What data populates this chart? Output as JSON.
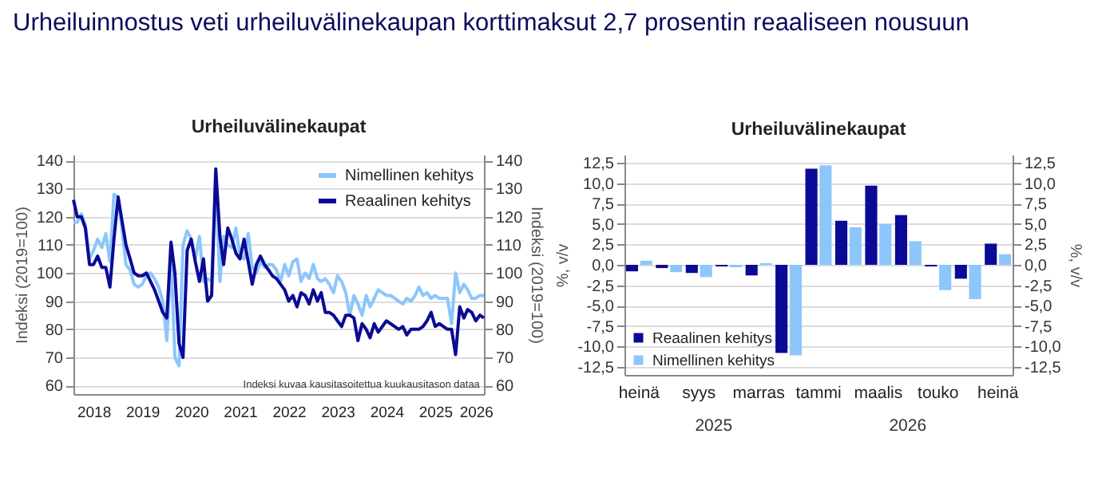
{
  "chart_data": [
    {
      "type": "line",
      "title": "Urheiluinnostus veti urheiluvälinekaupan korttimaksut 2,7 prosentin reaaliseen nousuun",
      "subtitle": "Urheiluvälinekaupat",
      "ylabel": "Indeksi (2019=100)",
      "y2label": "Indeksi (2019=100)",
      "annotations": [
        "Indeksi kuvaa kausitasoitettua kuukausitason dataa"
      ],
      "x": [
        "2018-02",
        "2018-03",
        "2018-04",
        "2018-05",
        "2018-06",
        "2018-07",
        "2018-08",
        "2018-09",
        "2018-10",
        "2018-11",
        "2018-12",
        "2019-01",
        "2019-02",
        "2019-03",
        "2019-04",
        "2019-05",
        "2019-06",
        "2019-07",
        "2019-08",
        "2019-09",
        "2019-10",
        "2019-11",
        "2019-12",
        "2020-01",
        "2020-02",
        "2020-03",
        "2020-04",
        "2020-05",
        "2020-06",
        "2020-07",
        "2020-08",
        "2020-09",
        "2020-10",
        "2020-11",
        "2020-12",
        "2021-01",
        "2021-02",
        "2021-03",
        "2021-04",
        "2021-05",
        "2021-06",
        "2021-07",
        "2021-08",
        "2021-09",
        "2021-10",
        "2021-11",
        "2021-12",
        "2022-01",
        "2022-02",
        "2022-03",
        "2022-04",
        "2022-05",
        "2022-06",
        "2022-07",
        "2022-08",
        "2022-09",
        "2022-10",
        "2022-11",
        "2022-12",
        "2023-01",
        "2023-02",
        "2023-03",
        "2023-04",
        "2023-05",
        "2023-06",
        "2023-07",
        "2023-08",
        "2023-09",
        "2023-10",
        "2023-11",
        "2023-12",
        "2024-01",
        "2024-02",
        "2024-03",
        "2024-04",
        "2024-05",
        "2024-06",
        "2024-07",
        "2024-08",
        "2024-09",
        "2024-10",
        "2024-11",
        "2024-12",
        "2025-01",
        "2025-02",
        "2025-03",
        "2025-04",
        "2025-05",
        "2025-06",
        "2025-07",
        "2025-08",
        "2025-09",
        "2025-10",
        "2025-11",
        "2025-12",
        "2026-01",
        "2026-02",
        "2026-03",
        "2026-04",
        "2026-05",
        "2026-06",
        "2026-07"
      ],
      "series": [
        {
          "name": "Nimellinen kehitys",
          "color": "#8cc6fb",
          "values": [
            118,
            118,
            121,
            117,
            105,
            108,
            112,
            109,
            114,
            104,
            128,
            127,
            115,
            103,
            101,
            96,
            95,
            96,
            99,
            100,
            98,
            95,
            90,
            76,
            107,
            70,
            67,
            110,
            115,
            112,
            105,
            113,
            97,
            98,
            97,
            134,
            97,
            113,
            110,
            109,
            116,
            106,
            105,
            114,
            102,
            100,
            104,
            102,
            103,
            103,
            101,
            97,
            103,
            99,
            104,
            105,
            97,
            100,
            98,
            103,
            98,
            97,
            98,
            96,
            93,
            99,
            97,
            93,
            85,
            92,
            89,
            85,
            92,
            88,
            91,
            94,
            93,
            92,
            92,
            91,
            90,
            89,
            91,
            90,
            92,
            95,
            92,
            93,
            91,
            92,
            91,
            91,
            91,
            82,
            100,
            93,
            96,
            94,
            91,
            91,
            92,
            92
          ]
        },
        {
          "name": "Reaalinen kehitys",
          "color": "#0a0a96",
          "values": [
            126,
            120,
            120,
            116,
            103,
            103,
            106,
            102,
            102,
            95,
            112,
            127,
            118,
            110,
            105,
            100,
            99,
            99,
            100,
            97,
            94,
            90,
            86,
            84,
            111,
            100,
            75,
            70,
            108,
            112,
            104,
            97,
            105,
            90,
            92,
            137,
            113,
            103,
            116,
            112,
            107,
            105,
            112,
            104,
            96,
            103,
            106,
            103,
            101,
            99,
            98,
            96,
            94,
            90,
            92,
            88,
            93,
            92,
            89,
            94,
            90,
            93,
            86,
            86,
            85,
            83,
            81,
            85,
            85,
            84,
            76,
            82,
            80,
            77,
            82,
            79,
            81,
            83,
            82,
            81,
            80,
            81,
            78,
            80,
            80,
            80,
            81,
            83,
            86,
            81,
            82,
            81,
            80,
            80,
            71,
            88,
            84,
            87,
            86,
            83,
            85,
            84
          ]
        }
      ],
      "xlim": [
        "2018-02",
        "2026-07"
      ],
      "xticks": [
        {
          "value": "2018-07",
          "label": "2018"
        },
        {
          "value": "2019-07",
          "label": "2019"
        },
        {
          "value": "2020-07",
          "label": "2020"
        },
        {
          "value": "2021-07",
          "label": "2021"
        },
        {
          "value": "2022-07",
          "label": "2022"
        },
        {
          "value": "2023-07",
          "label": "2023"
        },
        {
          "value": "2024-07",
          "label": "2024"
        },
        {
          "value": "2025-07",
          "label": "2025"
        },
        {
          "value": "2026-05",
          "label": "2026"
        }
      ],
      "ylim": [
        57,
        142
      ],
      "yticks": [
        60,
        70,
        80,
        90,
        100,
        110,
        120,
        130,
        140
      ],
      "y2lim": [
        57,
        142
      ],
      "y2ticks": [
        60,
        70,
        80,
        90,
        100,
        110,
        120,
        130,
        140
      ],
      "grid": "y",
      "legend": "top right"
    },
    {
      "type": "bar",
      "title": "Urheiluvälinekaupat",
      "ylabel": "%, v/v",
      "y2label": "%, v/v",
      "annotations": [
        "2025",
        "2026"
      ],
      "categories": [
        "heinä",
        null,
        "syys",
        null,
        "marras",
        null,
        "tammi",
        null,
        "maalis",
        null,
        "touko",
        null,
        "heinä"
      ],
      "series": [
        {
          "name": "Reaalinen kehitys",
          "color": "#0a0a96",
          "values": [
            -0.8,
            -0.4,
            -1.0,
            -0.2,
            -1.3,
            -10.8,
            11.8,
            5.4,
            9.7,
            6.1,
            -0.2,
            -1.7,
            2.6
          ]
        },
        {
          "name": "Nimellinen kehitys",
          "color": "#8cc6fb",
          "values": [
            0.5,
            -0.9,
            -1.5,
            -0.3,
            0.2,
            -11.1,
            12.2,
            4.6,
            5.0,
            2.9,
            -3.1,
            -4.2,
            1.3
          ]
        }
      ],
      "ylim": [
        -13.5,
        13.5
      ],
      "yticks": [
        {
          "value": -12.5,
          "label": "-12,5"
        },
        {
          "value": -10,
          "label": "-10,0"
        },
        {
          "value": -7.5,
          "label": "-7,5"
        },
        {
          "value": -5,
          "label": "-5,0"
        },
        {
          "value": -2.5,
          "label": "-2,5"
        },
        {
          "value": 0,
          "label": "0,0"
        },
        {
          "value": 2.5,
          "label": "2,5"
        },
        {
          "value": 5,
          "label": "5,0"
        },
        {
          "value": 7.5,
          "label": "7,5"
        },
        {
          "value": 10,
          "label": "10,0"
        },
        {
          "value": 12.5,
          "label": "12,5"
        }
      ],
      "y2lim": [
        -13.5,
        13.5
      ],
      "y2ticks": [
        {
          "value": -12.5,
          "label": "-12,5"
        },
        {
          "value": -10,
          "label": "-10,0"
        },
        {
          "value": -7.5,
          "label": "-7,5"
        },
        {
          "value": -5,
          "label": "-5,0"
        },
        {
          "value": -2.5,
          "label": "-2,5"
        },
        {
          "value": 0,
          "label": "0,0"
        },
        {
          "value": 2.5,
          "label": "2,5"
        },
        {
          "value": 5,
          "label": "5,0"
        },
        {
          "value": 7.5,
          "label": "7,5"
        },
        {
          "value": 10,
          "label": "10,0"
        },
        {
          "value": 12.5,
          "label": "12,5"
        }
      ],
      "grid": "y",
      "legend": "bottom left"
    }
  ]
}
